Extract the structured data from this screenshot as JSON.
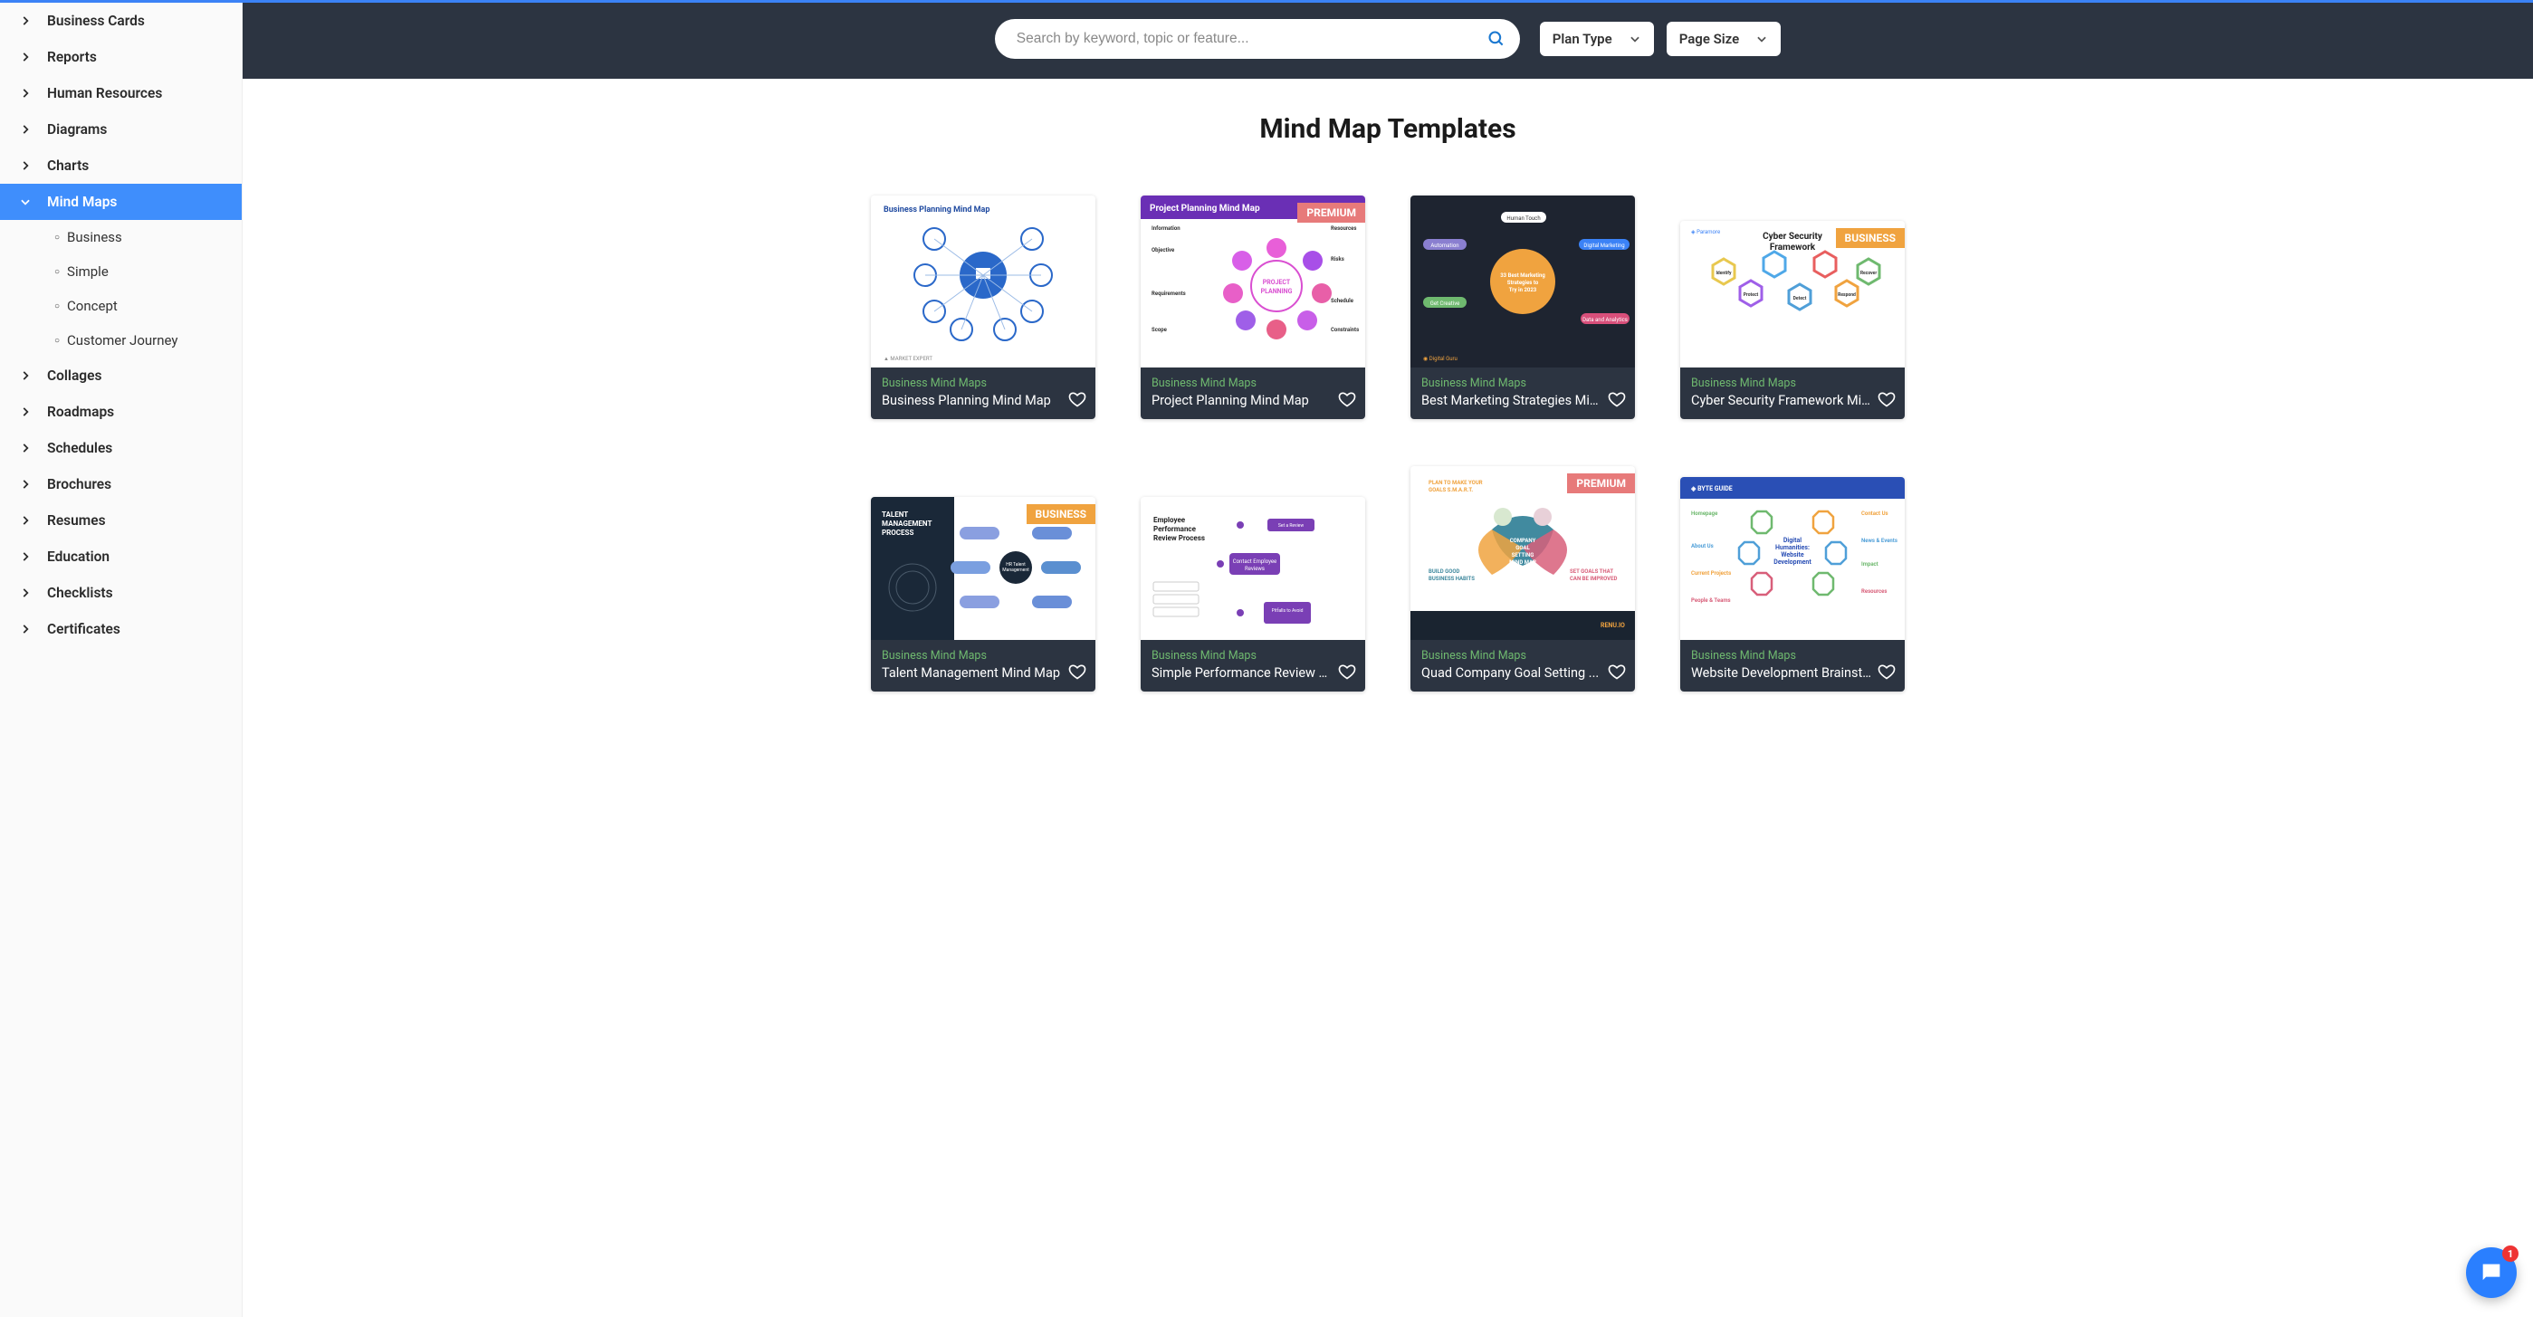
{
  "accent_color": "#3f8efc",
  "header_bg": "#2c3441",
  "sidebar": {
    "items": [
      {
        "label": "Business Cards",
        "expanded": false
      },
      {
        "label": "Reports",
        "expanded": false
      },
      {
        "label": "Human Resources",
        "expanded": false
      },
      {
        "label": "Diagrams",
        "expanded": false
      },
      {
        "label": "Charts",
        "expanded": false
      },
      {
        "label": "Mind Maps",
        "expanded": true,
        "active": true,
        "children": [
          {
            "label": "Business"
          },
          {
            "label": "Simple"
          },
          {
            "label": "Concept"
          },
          {
            "label": "Customer Journey"
          }
        ]
      },
      {
        "label": "Collages",
        "expanded": false
      },
      {
        "label": "Roadmaps",
        "expanded": false
      },
      {
        "label": "Schedules",
        "expanded": false
      },
      {
        "label": "Brochures",
        "expanded": false
      },
      {
        "label": "Resumes",
        "expanded": false
      },
      {
        "label": "Education",
        "expanded": false
      },
      {
        "label": "Checklists",
        "expanded": false
      },
      {
        "label": "Certificates",
        "expanded": false
      }
    ]
  },
  "search": {
    "placeholder": "Search by keyword, topic or feature..."
  },
  "filters": [
    {
      "label": "Plan Type"
    },
    {
      "label": "Page Size"
    }
  ],
  "page_title": "Mind Map Templates",
  "cards": [
    {
      "category": "Business Mind Maps",
      "title": "Business Planning Mind Map",
      "badge": null,
      "thumb_h": 190,
      "thumb": "t1"
    },
    {
      "category": "Business Mind Maps",
      "title": "Project Planning Mind Map",
      "badge": "PREMIUM",
      "thumb_h": 190,
      "thumb": "t2"
    },
    {
      "category": "Business Mind Maps",
      "title": "Best Marketing Strategies Min...",
      "badge": null,
      "thumb_h": 190,
      "thumb": "t3"
    },
    {
      "category": "Business Mind Maps",
      "title": "Cyber Security Framework Min...",
      "badge": "BUSINESS",
      "thumb_h": 162,
      "thumb": "t4"
    },
    {
      "category": "Business Mind Maps",
      "title": "Talent Management Mind Map",
      "badge": "BUSINESS",
      "thumb_h": 158,
      "thumb": "t5"
    },
    {
      "category": "Business Mind Maps",
      "title": "Simple Performance Review M...",
      "badge": null,
      "thumb_h": 158,
      "thumb": "t6"
    },
    {
      "category": "Business Mind Maps",
      "title": "Quad Company Goal Setting ...",
      "badge": "PREMIUM",
      "thumb_h": 192,
      "thumb": "t7"
    },
    {
      "category": "Business Mind Maps",
      "title": "Website Development Brainst...",
      "badge": null,
      "thumb_h": 180,
      "thumb": "t8"
    }
  ],
  "chat_badge": "1"
}
